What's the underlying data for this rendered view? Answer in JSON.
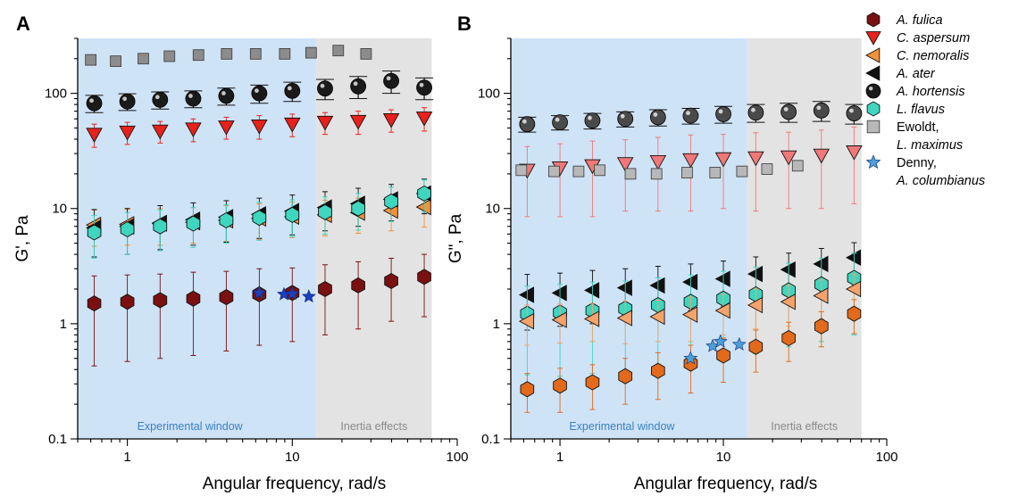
{
  "chart_data": [
    {
      "type": "scatter",
      "panel": "A",
      "xlabel": "Angular frequency, rad/s",
      "ylabel": "G', Pa",
      "xscale": "log",
      "yscale": "log",
      "xlim": [
        0.5,
        100
      ],
      "ylim": [
        0.1,
        300
      ],
      "xticks": [
        {
          "v": 1,
          "label": "1"
        },
        {
          "v": 10,
          "label": "10"
        },
        {
          "v": 100,
          "label": "100"
        }
      ],
      "yticks": [
        {
          "v": 0.1,
          "label": "0.1"
        },
        {
          "v": 1,
          "label": "1"
        },
        {
          "v": 10,
          "label": "10"
        },
        {
          "v": 100,
          "label": "100"
        }
      ],
      "regions": [
        {
          "label": "Experimental window",
          "x_range": [
            0.5,
            14
          ],
          "fill": "#cfe3f7",
          "text_color": "#3a7fc0"
        },
        {
          "label": "Inertia effects",
          "x_range": [
            14,
            70
          ],
          "fill": "#e3e3e3",
          "text_color": "#8a8a8a"
        }
      ],
      "series": [
        {
          "name": "Ewoldt, L. maximus",
          "marker": "square",
          "color": "#8c8c8c",
          "x": [
            0.6,
            0.85,
            1.25,
            1.8,
            2.7,
            4,
            6,
            9,
            13,
            19,
            28
          ],
          "y": [
            195,
            190,
            200,
            210,
            215,
            220,
            220,
            220,
            225,
            235,
            220
          ]
        },
        {
          "name": "A. hortensis",
          "marker": "sphere",
          "color": "#1a1a1a",
          "x": [
            0.63,
            1,
            1.58,
            2.51,
            3.98,
            6.31,
            10,
            15.8,
            25.1,
            39.8,
            63.1
          ],
          "y": [
            82,
            85,
            88,
            90,
            95,
            100,
            105,
            110,
            115,
            128,
            112
          ],
          "err": [
            14,
            14,
            15,
            15,
            16,
            18,
            20,
            22,
            25,
            28,
            24
          ]
        },
        {
          "name": "C. aspersum",
          "marker": "triangle-down",
          "color": "#e8211b",
          "x": [
            0.63,
            1,
            1.58,
            2.51,
            3.98,
            6.31,
            10,
            15.8,
            25.1,
            39.8,
            63.1
          ],
          "y": [
            44,
            46,
            47,
            49,
            51,
            52,
            54,
            56,
            57,
            59,
            61
          ],
          "err": [
            10,
            10,
            10,
            11,
            11,
            12,
            12,
            12,
            13,
            13,
            14
          ]
        },
        {
          "name": "C. nemoralis",
          "marker": "triangle-left",
          "color": "#f4923a",
          "x": [
            0.63,
            1,
            1.58,
            2.51,
            3.98,
            6.31,
            10,
            15.8,
            25.1,
            39.8,
            63.1
          ],
          "y": [
            7.2,
            7.3,
            7.4,
            7.6,
            7.9,
            8.2,
            8.5,
            8.8,
            9.2,
            9.6,
            10.3
          ],
          "err": [
            2.5,
            2.5,
            2.6,
            2.6,
            2.7,
            2.8,
            2.9,
            3,
            3.1,
            3.2,
            3.4
          ]
        },
        {
          "name": "A. ater",
          "marker": "triangle-left",
          "color": "#111111",
          "x": [
            0.63,
            1,
            1.58,
            2.51,
            3.98,
            6.31,
            10,
            15.8,
            25.1,
            39.8,
            63.1
          ],
          "y": [
            6.8,
            7.0,
            7.5,
            8.0,
            8.4,
            8.9,
            9.5,
            10.2,
            11,
            12,
            13.5
          ],
          "err": [
            3,
            3,
            3.1,
            3.2,
            3.3,
            3.4,
            3.6,
            3.8,
            4,
            4.2,
            4.5
          ]
        },
        {
          "name": "L. flavus",
          "marker": "hexagon",
          "color": "#3fd6bf",
          "x": [
            0.63,
            1,
            1.58,
            2.51,
            3.98,
            6.31,
            10,
            15.8,
            25.1,
            39.8,
            63.1
          ],
          "y": [
            6.2,
            6.6,
            7.0,
            7.4,
            7.9,
            8.3,
            8.8,
            9.3,
            10,
            11.5,
            13.5
          ],
          "err": [
            2.5,
            2.6,
            2.7,
            2.8,
            2.9,
            3,
            3.1,
            3.3,
            3.5,
            3.8,
            4.2
          ]
        },
        {
          "name": "A. fulica",
          "marker": "hexagon",
          "color": "#7a1010",
          "x": [
            0.63,
            1,
            1.58,
            2.51,
            3.98,
            6.31,
            10,
            15.8,
            25.1,
            39.8,
            63.1
          ],
          "y": [
            1.5,
            1.55,
            1.6,
            1.65,
            1.7,
            1.8,
            1.85,
            2.0,
            2.15,
            2.35,
            2.55
          ],
          "err_up": [
            1.1,
            1.1,
            1.1,
            1.15,
            1.15,
            1.2,
            1.2,
            1.25,
            1.3,
            1.35,
            1.45
          ],
          "err_low": [
            1.07,
            1.08,
            1.1,
            1.12,
            1.12,
            1.15,
            1.15,
            1.2,
            1.25,
            1.3,
            1.4
          ]
        },
        {
          "name": "Denny, A. columbianus",
          "marker": "star",
          "color": "#1a3fbf",
          "x": [
            6.3,
            8.9,
            10.0,
            12.6
          ],
          "y": [
            1.85,
            1.8,
            1.82,
            1.72
          ]
        }
      ]
    },
    {
      "type": "scatter",
      "panel": "B",
      "xlabel": "Angular frequency, rad/s",
      "ylabel": "G\", Pa",
      "xscale": "log",
      "yscale": "log",
      "xlim": [
        0.5,
        100
      ],
      "ylim": [
        0.1,
        300
      ],
      "xticks": [
        {
          "v": 1,
          "label": "1"
        },
        {
          "v": 10,
          "label": "10"
        },
        {
          "v": 100,
          "label": "100"
        }
      ],
      "yticks": [
        {
          "v": 0.1,
          "label": "0.1"
        },
        {
          "v": 1,
          "label": "1"
        },
        {
          "v": 10,
          "label": "10"
        },
        {
          "v": 100,
          "label": "100"
        }
      ],
      "regions": [
        {
          "label": "Experimental window",
          "x_range": [
            0.5,
            14
          ],
          "fill": "#cfe3f7",
          "text_color": "#3a7fc0"
        },
        {
          "label": "Inertia effects",
          "x_range": [
            14,
            70
          ],
          "fill": "#e3e3e3",
          "text_color": "#8a8a8a"
        }
      ],
      "series": [
        {
          "name": "A. hortensis",
          "marker": "sphere",
          "color": "#4a4a4a",
          "x": [
            0.63,
            1,
            1.58,
            2.51,
            3.98,
            6.31,
            10,
            15.8,
            25.1,
            39.8,
            63.1
          ],
          "y": [
            54,
            56,
            58,
            60,
            62,
            64,
            66,
            68,
            69,
            71,
            67
          ],
          "err": [
            8,
            8,
            9,
            9,
            10,
            10,
            11,
            12,
            13,
            14,
            13
          ]
        },
        {
          "name": "C. aspersum",
          "marker": "triangle-down",
          "color": "#f07878",
          "x": [
            0.63,
            1,
            1.58,
            2.51,
            3.98,
            6.31,
            10,
            15.8,
            25.1,
            39.8,
            63.1
          ],
          "y": [
            21.5,
            22.5,
            23.5,
            24.5,
            25.5,
            26.5,
            27,
            27.5,
            28,
            29,
            31
          ],
          "err": [
            13,
            14,
            15,
            15,
            16,
            17,
            17,
            18,
            18,
            19,
            20
          ]
        },
        {
          "name": "Ewoldt, L. maximus",
          "marker": "square",
          "color": "#b8b8b8",
          "x": [
            0.58,
            0.92,
            1.3,
            1.75,
            2.7,
            3.9,
            6.0,
            8.9,
            13.0,
            18.5,
            28.5
          ],
          "y": [
            21.5,
            21,
            21,
            21.5,
            20,
            20,
            20.5,
            20.5,
            21,
            22,
            23.5
          ]
        },
        {
          "name": "A. ater",
          "marker": "triangle-left",
          "color": "#111111",
          "x": [
            0.63,
            1,
            1.58,
            2.51,
            3.98,
            6.31,
            10,
            15.8,
            25.1,
            39.8,
            63.1
          ],
          "y": [
            1.78,
            1.85,
            1.95,
            2.05,
            2.15,
            2.3,
            2.45,
            2.7,
            2.95,
            3.3,
            3.75
          ],
          "err": [
            0.9,
            0.9,
            0.95,
            0.95,
            1,
            1,
            1.05,
            1.1,
            1.15,
            1.2,
            1.3
          ]
        },
        {
          "name": "L. flavus",
          "marker": "hexagon",
          "color": "#3fd6bf",
          "x": [
            0.63,
            1,
            1.58,
            2.51,
            3.98,
            6.31,
            10,
            15.8,
            25.1,
            39.8,
            63.1
          ],
          "y": [
            1.22,
            1.25,
            1.3,
            1.35,
            1.45,
            1.55,
            1.65,
            1.8,
            1.95,
            2.2,
            2.5
          ],
          "err_up": [
            0.9,
            0.95,
            1,
            1,
            1.05,
            1.1,
            1.2,
            1.3,
            1.4,
            1.5,
            1.6
          ],
          "err_low": [
            0.86,
            0.9,
            0.93,
            0.96,
            1.01,
            1.07,
            1.12,
            1.25,
            1.32,
            1.5,
            1.7
          ]
        },
        {
          "name": "C. nemoralis",
          "marker": "triangle-left",
          "color": "#f4a36a",
          "x": [
            0.63,
            1,
            1.58,
            2.51,
            3.98,
            6.31,
            10,
            15.8,
            25.1,
            39.8,
            63.1
          ],
          "y": [
            1.05,
            1.08,
            1.1,
            1.12,
            1.15,
            1.2,
            1.3,
            1.45,
            1.55,
            1.75,
            2.0
          ],
          "err": [
            0.4,
            0.4,
            0.4,
            0.45,
            0.45,
            0.5,
            0.5,
            0.55,
            0.6,
            0.65,
            0.7
          ]
        },
        {
          "name": "A. fulica",
          "marker": "hexagon",
          "color": "#e36a1a",
          "x": [
            0.63,
            1,
            1.58,
            2.51,
            3.98,
            6.31,
            10,
            15.8,
            25.1,
            39.8,
            63.1
          ],
          "y": [
            0.27,
            0.29,
            0.31,
            0.35,
            0.39,
            0.45,
            0.53,
            0.63,
            0.75,
            0.95,
            1.22
          ],
          "err": [
            0.1,
            0.12,
            0.13,
            0.15,
            0.17,
            0.2,
            0.22,
            0.25,
            0.28,
            0.32,
            0.4
          ]
        },
        {
          "name": "Denny, A. columbianus",
          "marker": "star",
          "color": "#4a9fd9",
          "x": [
            6.3,
            8.6,
            9.6,
            12.5
          ],
          "y": [
            0.5,
            0.64,
            0.7,
            0.66
          ]
        }
      ]
    }
  ],
  "legend": {
    "placement": "right",
    "entries": [
      {
        "lines": [
          "A. fulica"
        ],
        "italic": [
          true
        ],
        "marker": "hexagon",
        "color": "#7a1010"
      },
      {
        "lines": [
          "C. aspersum"
        ],
        "italic": [
          true
        ],
        "marker": "triangle-down",
        "color": "#e8211b"
      },
      {
        "lines": [
          "C. nemoralis"
        ],
        "italic": [
          true
        ],
        "marker": "triangle-left",
        "color": "#f4923a"
      },
      {
        "lines": [
          "A. ater"
        ],
        "italic": [
          true
        ],
        "marker": "triangle-left",
        "color": "#111111"
      },
      {
        "lines": [
          "A. hortensis"
        ],
        "italic": [
          true
        ],
        "marker": "sphere",
        "color": "#1a1a1a"
      },
      {
        "lines": [
          "L. flavus"
        ],
        "italic": [
          true
        ],
        "marker": "hexagon",
        "color": "#3fd6bf"
      },
      {
        "lines": [
          "Ewoldt,",
          "L. maximus"
        ],
        "italic": [
          false,
          true
        ],
        "marker": "square",
        "color": "#b8b8b8"
      },
      {
        "lines": [
          "Denny,",
          "A. columbianus"
        ],
        "italic": [
          false,
          true
        ],
        "marker": "star",
        "color": "#4a9fd9"
      }
    ]
  }
}
